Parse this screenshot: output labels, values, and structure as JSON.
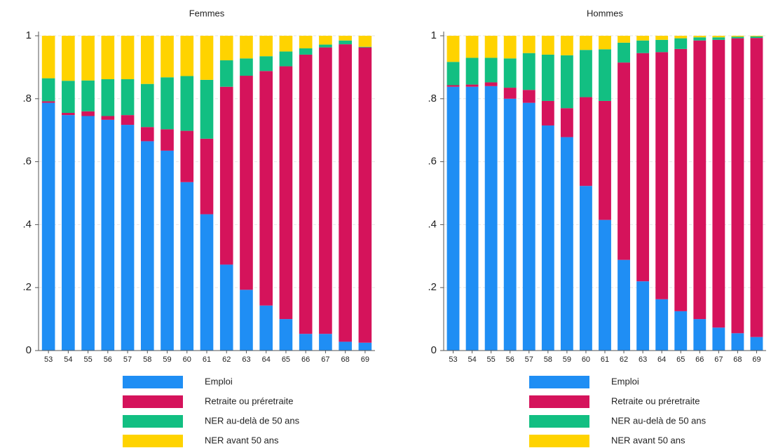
{
  "chart_data": [
    {
      "type": "stacked_bar",
      "title": "Femmes",
      "categories": [
        "53",
        "54",
        "55",
        "56",
        "57",
        "58",
        "59",
        "60",
        "61",
        "62",
        "63",
        "64",
        "65",
        "66",
        "67",
        "68",
        "69"
      ],
      "series": [
        {
          "name": "Emploi",
          "color": "#1f8ef4",
          "values": [
            0.787,
            0.748,
            0.745,
            0.733,
            0.717,
            0.665,
            0.635,
            0.535,
            0.433,
            0.273,
            0.193,
            0.143,
            0.1,
            0.053,
            0.053,
            0.028,
            0.025
          ]
        },
        {
          "name": "Retraite ou préretraite",
          "color": "#d5135b",
          "values": [
            0.005,
            0.007,
            0.015,
            0.012,
            0.031,
            0.045,
            0.068,
            0.163,
            0.24,
            0.565,
            0.68,
            0.745,
            0.803,
            0.887,
            0.91,
            0.945,
            0.938
          ]
        },
        {
          "name": "NER au-delà de 50 ans",
          "color": "#12bf82",
          "values": [
            0.073,
            0.102,
            0.098,
            0.117,
            0.114,
            0.137,
            0.165,
            0.174,
            0.187,
            0.084,
            0.055,
            0.047,
            0.047,
            0.02,
            0.009,
            0.012,
            0.002
          ]
        },
        {
          "name": "NER avant 50 ans",
          "color": "#ffd300",
          "values": [
            0.135,
            0.143,
            0.142,
            0.138,
            0.138,
            0.153,
            0.132,
            0.128,
            0.14,
            0.078,
            0.072,
            0.065,
            0.05,
            0.04,
            0.028,
            0.015,
            0.035
          ]
        }
      ],
      "ylim": [
        0,
        1
      ],
      "yticks": [
        0,
        {
          "value": 0.2,
          "label": ".2"
        },
        {
          "value": 0.4,
          "label": ".4"
        },
        {
          "value": 0.6,
          "label": ".6"
        },
        {
          "value": 0.8,
          "label": ".8"
        },
        1
      ],
      "grid": true
    },
    {
      "type": "stacked_bar",
      "title": "Hommes",
      "categories": [
        "53",
        "54",
        "55",
        "56",
        "57",
        "58",
        "59",
        "60",
        "61",
        "62",
        "63",
        "64",
        "65",
        "66",
        "67",
        "68",
        "69"
      ],
      "series": [
        {
          "name": "Emploi",
          "color": "#1f8ef4",
          "values": [
            0.838,
            0.838,
            0.84,
            0.8,
            0.787,
            0.715,
            0.678,
            0.523,
            0.415,
            0.288,
            0.22,
            0.163,
            0.125,
            0.1,
            0.073,
            0.055,
            0.043
          ]
        },
        {
          "name": "Retraite ou préretraite",
          "color": "#d5135b",
          "values": [
            0.005,
            0.007,
            0.012,
            0.035,
            0.041,
            0.078,
            0.092,
            0.282,
            0.378,
            0.627,
            0.725,
            0.785,
            0.833,
            0.885,
            0.914,
            0.937,
            0.95
          ]
        },
        {
          "name": "NER au-delà de 50 ans",
          "color": "#12bf82",
          "values": [
            0.074,
            0.085,
            0.078,
            0.093,
            0.117,
            0.147,
            0.168,
            0.15,
            0.164,
            0.063,
            0.04,
            0.039,
            0.034,
            0.01,
            0.008,
            0.005,
            0.005
          ]
        },
        {
          "name": "NER avant 50 ans",
          "color": "#ffd300",
          "values": [
            0.083,
            0.07,
            0.07,
            0.072,
            0.055,
            0.06,
            0.062,
            0.045,
            0.043,
            0.022,
            0.015,
            0.013,
            0.008,
            0.005,
            0.005,
            0.003,
            0.002
          ]
        }
      ],
      "ylim": [
        0,
        1
      ],
      "yticks": [
        0,
        {
          "value": 0.2,
          "label": ".2"
        },
        {
          "value": 0.4,
          "label": ".4"
        },
        {
          "value": 0.6,
          "label": ".6"
        },
        {
          "value": 0.8,
          "label": ".8"
        },
        1
      ],
      "grid": true
    }
  ]
}
